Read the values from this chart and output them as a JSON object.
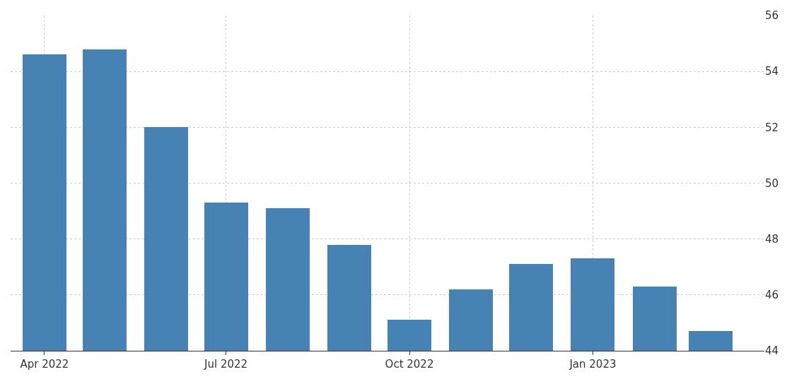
{
  "chart_data": {
    "type": "bar",
    "x": [
      "2022-04",
      "2022-05",
      "2022-06",
      "2022-07",
      "2022-08",
      "2022-09",
      "2022-10",
      "2022-11",
      "2022-12",
      "2023-01",
      "2023-02",
      "2023-03"
    ],
    "values": [
      54.6,
      54.8,
      52.0,
      49.3,
      49.1,
      47.8,
      45.1,
      46.2,
      47.1,
      47.3,
      46.3,
      44.7
    ],
    "color": "#4682b4",
    "xlim": [
      "2022-03-15",
      "2023-03-28"
    ],
    "xticks": [
      {
        "value": "2022-04",
        "label": "Apr 2022"
      },
      {
        "value": "2022-07",
        "label": "Jul 2022"
      },
      {
        "value": "2022-10",
        "label": "Oct 2022"
      },
      {
        "value": "2023-01",
        "label": "Jan 2023"
      }
    ],
    "ylim": [
      44,
      56
    ],
    "yticks": [
      44,
      46,
      48,
      50,
      52,
      54,
      56
    ],
    "grid": true
  }
}
